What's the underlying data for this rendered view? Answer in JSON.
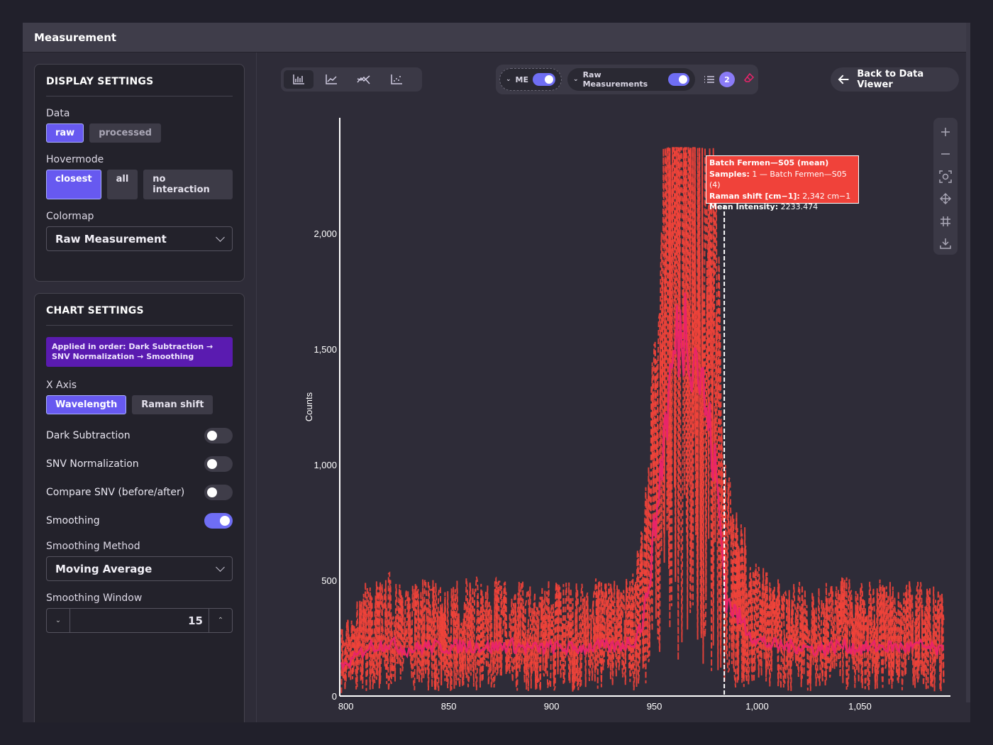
{
  "window": {
    "title": "Measurement"
  },
  "display_settings": {
    "heading": "DISPLAY SETTINGS",
    "data_label": "Data",
    "data_options": [
      "raw",
      "processed"
    ],
    "data_selected": "raw",
    "hovermode_label": "Hovermode",
    "hovermode_options": [
      "closest",
      "all",
      "no interaction"
    ],
    "hovermode_selected": "closest",
    "colormap_label": "Colormap",
    "colormap_value": "Raw Measurement"
  },
  "chart_settings": {
    "heading": "CHART SETTINGS",
    "notice": "Applied in order: Dark Subtraction → SNV Normalization → Smoothing",
    "xaxis_label": "X Axis",
    "xaxis_options": [
      "Wavelength",
      "Raman shift"
    ],
    "xaxis_selected": "Wavelength",
    "dark_subtraction": {
      "label": "Dark Subtraction",
      "on": false
    },
    "snv_normalization": {
      "label": "SNV Normalization",
      "on": false
    },
    "compare_snv": {
      "label": "Compare SNV (before/after)",
      "on": false
    },
    "smoothing": {
      "label": "Smoothing",
      "on": true
    },
    "smoothing_method_label": "Smoothing Method",
    "smoothing_method_value": "Moving Average",
    "smoothing_window_label": "Smoothing Window",
    "smoothing_window_value": "15"
  },
  "toolbar": {
    "chart_types": [
      "bar-chart-icon",
      "line-chart-icon",
      "multi-line-icon",
      "scatter-icon"
    ],
    "me_label": "ME",
    "raw_label": "Raw Measurements",
    "count_badge": "2",
    "back_label": "Back to Data Viewer"
  },
  "tooltip": {
    "line1": "Batch Fermen—S05 (mean)",
    "samples_key": "Samples:",
    "samples_val": "1 — Batch Fermen—S05 (4)",
    "raman_key": "Raman shift [cm−1]:",
    "raman_val": "2,342 cm−1",
    "mean_key": "Mean Intensity:",
    "mean_val": "2233.474"
  },
  "colors": {
    "accent": "#6759f0",
    "series_raw": "#f0423a",
    "series_mean": "#e8246a"
  },
  "chart_data": {
    "type": "line",
    "ylabel": "Counts",
    "xlim": [
      797,
      1094
    ],
    "ylim": [
      0,
      2500
    ],
    "x_ticks": [
      800,
      850,
      900,
      950,
      1000,
      1050
    ],
    "x_tick_labels": [
      "800",
      "850",
      "900",
      "950",
      "1,000",
      "1,050"
    ],
    "y_ticks": [
      0,
      500,
      1000,
      1500,
      2000
    ],
    "y_tick_labels": [
      "0",
      "500",
      "1,000",
      "1,500",
      "2,000"
    ],
    "hover_x": 984,
    "series": [
      {
        "style": "dashed",
        "x": [
          800,
          810,
          820,
          830,
          840,
          850,
          860,
          870,
          880,
          890,
          900,
          910,
          920,
          930,
          940,
          945,
          950,
          955,
          960,
          965,
          970,
          975,
          980,
          985,
          990,
          1000,
          1010,
          1020,
          1030,
          1040,
          1050,
          1060,
          1070,
          1080,
          1090
        ],
        "values": [
          130,
          210,
          230,
          200,
          215,
          210,
          220,
          210,
          220,
          205,
          210,
          205,
          215,
          210,
          240,
          340,
          700,
          1150,
          1500,
          1620,
          1500,
          1250,
          950,
          420,
          350,
          240,
          215,
          215,
          200,
          220,
          205,
          215,
          210,
          215,
          190
        ]
      },
      {
        "style": "solid",
        "x": [
          800,
          810,
          820,
          830,
          840,
          850,
          860,
          870,
          880,
          890,
          900,
          910,
          920,
          930,
          940,
          945,
          950,
          955,
          960,
          965,
          970,
          975,
          980,
          985,
          990,
          1000,
          1010,
          1020,
          1030,
          1040,
          1050,
          1060,
          1070,
          1080,
          1090
        ],
        "values": [
          130,
          210,
          230,
          200,
          215,
          210,
          220,
          210,
          220,
          205,
          210,
          205,
          215,
          210,
          240,
          340,
          700,
          1150,
          1500,
          1620,
          1500,
          1250,
          950,
          420,
          350,
          240,
          215,
          215,
          200,
          220,
          205,
          215,
          210,
          215,
          190
        ]
      }
    ]
  }
}
